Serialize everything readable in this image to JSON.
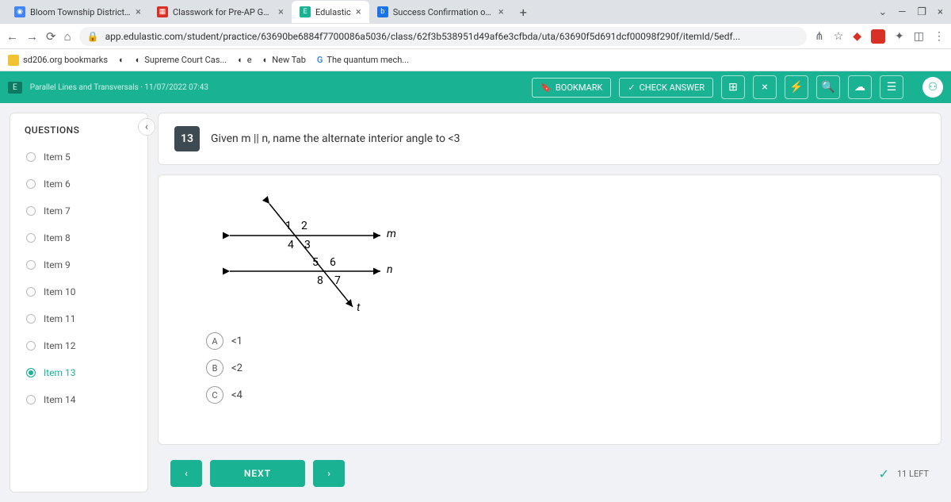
{
  "browser": {
    "tabs": [
      {
        "title": "Bloom Township District 206",
        "icon_bg": "#4285f4",
        "icon_text": "⬤",
        "active": false
      },
      {
        "title": "Classwork for Pre-AP Geometry",
        "icon_bg": "#d93025",
        "icon_text": "📕",
        "active": false
      },
      {
        "title": "Edulastic",
        "icon_bg": "#19b394",
        "icon_text": "E",
        "active": true
      },
      {
        "title": "Success Confirmation of Questio",
        "icon_bg": "#1a73e8",
        "icon_text": "b",
        "active": false
      }
    ],
    "url": "app.edulastic.com/student/practice/63690be6884f7700086a5036/class/62f3b538951d49af6e3cfbda/uta/63690f5d691dcf00098f290f/itemId/5edf...",
    "bookmarks": [
      {
        "label": "sd206.org bookmarks",
        "icon_bg": "#f1c232"
      },
      {
        "label": "",
        "icon_bg": "#000"
      },
      {
        "label": "Supreme Court Cas...",
        "icon_bg": "#000"
      },
      {
        "label": "e",
        "icon_bg": "#000"
      },
      {
        "label": "New Tab",
        "icon_bg": "#000"
      },
      {
        "label": "The quantum mech...",
        "icon_bg": "#4285f4",
        "prefix": "G"
      }
    ]
  },
  "header": {
    "breadcrumb": "Parallel Lines and Transversals · 11/07/2022 07:43",
    "bookmark_label": "BOOKMARK",
    "check_label": "CHECK ANSWER"
  },
  "sidebar": {
    "title": "QUESTIONS",
    "items": [
      {
        "label": "Item 5"
      },
      {
        "label": "Item 6"
      },
      {
        "label": "Item 7"
      },
      {
        "label": "Item 8"
      },
      {
        "label": "Item 9"
      },
      {
        "label": "Item 10"
      },
      {
        "label": "Item 11"
      },
      {
        "label": "Item 12"
      },
      {
        "label": "Item 13",
        "active": true
      },
      {
        "label": "Item 14"
      }
    ]
  },
  "question": {
    "number": "13",
    "text": "Given m || n,  name the alternate interior angle to <3",
    "diagram": {
      "labels": [
        "1",
        "2",
        "3",
        "4",
        "5",
        "6",
        "7",
        "8"
      ],
      "line_labels": {
        "m": "m",
        "n": "n",
        "t": "t"
      },
      "stroke": "#000",
      "text_color": "#000"
    },
    "answers": [
      {
        "letter": "A",
        "text": "<1"
      },
      {
        "letter": "B",
        "text": "<2"
      },
      {
        "letter": "C",
        "text": "<4"
      }
    ]
  },
  "nav": {
    "next": "NEXT",
    "remaining": "11 LEFT"
  },
  "colors": {
    "accent": "#19b394"
  }
}
